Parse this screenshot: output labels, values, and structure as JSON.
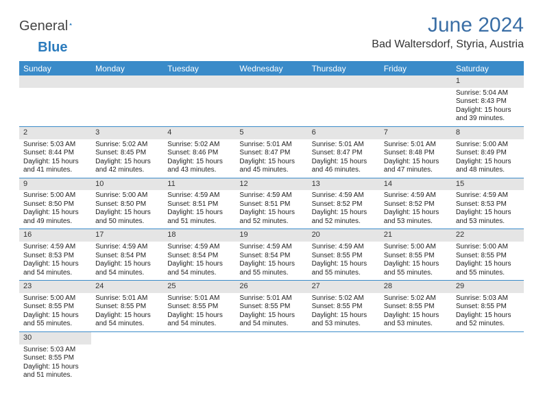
{
  "brand": {
    "general": "General",
    "blue": "Blue"
  },
  "title": "June 2024",
  "location": "Bad Waltersdorf, Styria, Austria",
  "colors": {
    "header_bg": "#3a8bc9",
    "header_text": "#ffffff",
    "daynum_bg": "#e5e5e5",
    "cell_border": "#3a8bc9",
    "title_color": "#3a6ea5"
  },
  "weekday_labels": [
    "Sunday",
    "Monday",
    "Tuesday",
    "Wednesday",
    "Thursday",
    "Friday",
    "Saturday"
  ],
  "first_weekday_index": 6,
  "days": [
    {
      "n": 1,
      "sunrise": "5:04 AM",
      "sunset": "8:43 PM",
      "daylight": "15 hours and 39 minutes."
    },
    {
      "n": 2,
      "sunrise": "5:03 AM",
      "sunset": "8:44 PM",
      "daylight": "15 hours and 41 minutes."
    },
    {
      "n": 3,
      "sunrise": "5:02 AM",
      "sunset": "8:45 PM",
      "daylight": "15 hours and 42 minutes."
    },
    {
      "n": 4,
      "sunrise": "5:02 AM",
      "sunset": "8:46 PM",
      "daylight": "15 hours and 43 minutes."
    },
    {
      "n": 5,
      "sunrise": "5:01 AM",
      "sunset": "8:47 PM",
      "daylight": "15 hours and 45 minutes."
    },
    {
      "n": 6,
      "sunrise": "5:01 AM",
      "sunset": "8:47 PM",
      "daylight": "15 hours and 46 minutes."
    },
    {
      "n": 7,
      "sunrise": "5:01 AM",
      "sunset": "8:48 PM",
      "daylight": "15 hours and 47 minutes."
    },
    {
      "n": 8,
      "sunrise": "5:00 AM",
      "sunset": "8:49 PM",
      "daylight": "15 hours and 48 minutes."
    },
    {
      "n": 9,
      "sunrise": "5:00 AM",
      "sunset": "8:50 PM",
      "daylight": "15 hours and 49 minutes."
    },
    {
      "n": 10,
      "sunrise": "5:00 AM",
      "sunset": "8:50 PM",
      "daylight": "15 hours and 50 minutes."
    },
    {
      "n": 11,
      "sunrise": "4:59 AM",
      "sunset": "8:51 PM",
      "daylight": "15 hours and 51 minutes."
    },
    {
      "n": 12,
      "sunrise": "4:59 AM",
      "sunset": "8:51 PM",
      "daylight": "15 hours and 52 minutes."
    },
    {
      "n": 13,
      "sunrise": "4:59 AM",
      "sunset": "8:52 PM",
      "daylight": "15 hours and 52 minutes."
    },
    {
      "n": 14,
      "sunrise": "4:59 AM",
      "sunset": "8:52 PM",
      "daylight": "15 hours and 53 minutes."
    },
    {
      "n": 15,
      "sunrise": "4:59 AM",
      "sunset": "8:53 PM",
      "daylight": "15 hours and 53 minutes."
    },
    {
      "n": 16,
      "sunrise": "4:59 AM",
      "sunset": "8:53 PM",
      "daylight": "15 hours and 54 minutes."
    },
    {
      "n": 17,
      "sunrise": "4:59 AM",
      "sunset": "8:54 PM",
      "daylight": "15 hours and 54 minutes."
    },
    {
      "n": 18,
      "sunrise": "4:59 AM",
      "sunset": "8:54 PM",
      "daylight": "15 hours and 54 minutes."
    },
    {
      "n": 19,
      "sunrise": "4:59 AM",
      "sunset": "8:54 PM",
      "daylight": "15 hours and 55 minutes."
    },
    {
      "n": 20,
      "sunrise": "4:59 AM",
      "sunset": "8:55 PM",
      "daylight": "15 hours and 55 minutes."
    },
    {
      "n": 21,
      "sunrise": "5:00 AM",
      "sunset": "8:55 PM",
      "daylight": "15 hours and 55 minutes."
    },
    {
      "n": 22,
      "sunrise": "5:00 AM",
      "sunset": "8:55 PM",
      "daylight": "15 hours and 55 minutes."
    },
    {
      "n": 23,
      "sunrise": "5:00 AM",
      "sunset": "8:55 PM",
      "daylight": "15 hours and 55 minutes."
    },
    {
      "n": 24,
      "sunrise": "5:01 AM",
      "sunset": "8:55 PM",
      "daylight": "15 hours and 54 minutes."
    },
    {
      "n": 25,
      "sunrise": "5:01 AM",
      "sunset": "8:55 PM",
      "daylight": "15 hours and 54 minutes."
    },
    {
      "n": 26,
      "sunrise": "5:01 AM",
      "sunset": "8:55 PM",
      "daylight": "15 hours and 54 minutes."
    },
    {
      "n": 27,
      "sunrise": "5:02 AM",
      "sunset": "8:55 PM",
      "daylight": "15 hours and 53 minutes."
    },
    {
      "n": 28,
      "sunrise": "5:02 AM",
      "sunset": "8:55 PM",
      "daylight": "15 hours and 53 minutes."
    },
    {
      "n": 29,
      "sunrise": "5:03 AM",
      "sunset": "8:55 PM",
      "daylight": "15 hours and 52 minutes."
    },
    {
      "n": 30,
      "sunrise": "5:03 AM",
      "sunset": "8:55 PM",
      "daylight": "15 hours and 51 minutes."
    }
  ],
  "labels": {
    "sunrise": "Sunrise:",
    "sunset": "Sunset:",
    "daylight": "Daylight:"
  }
}
